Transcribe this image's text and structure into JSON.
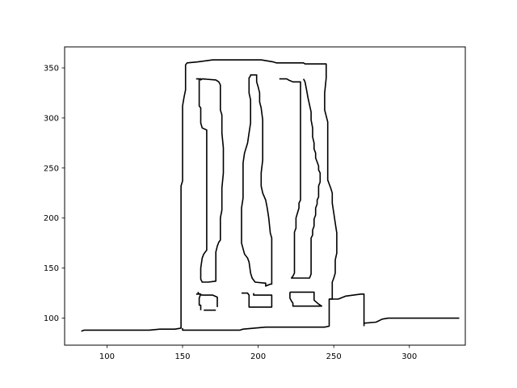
{
  "chart_data": {
    "type": "line",
    "title": "",
    "xlabel": "",
    "ylabel": "",
    "xlim": [
      72,
      337
    ],
    "ylim": [
      73,
      371
    ],
    "grid": false,
    "legend": "none",
    "line_color": "#000000",
    "x_ticks": [
      100,
      150,
      200,
      250,
      300
    ],
    "y_ticks": [
      100,
      150,
      200,
      250,
      300,
      350
    ],
    "series": [
      {
        "points": [
          [
            83,
            87
          ],
          [
            85,
            88
          ],
          [
            128,
            88
          ],
          [
            135,
            89
          ],
          [
            145,
            89
          ],
          [
            149,
            90
          ],
          [
            149,
            232
          ],
          [
            150,
            237
          ],
          [
            150,
            312
          ],
          [
            151,
            321
          ],
          [
            152,
            328
          ],
          [
            152,
            353
          ],
          [
            153,
            355
          ],
          [
            160,
            356
          ],
          [
            170,
            358
          ],
          [
            202,
            358
          ],
          [
            206,
            357
          ],
          [
            210,
            356
          ],
          [
            212,
            355
          ],
          [
            230,
            355
          ],
          [
            231,
            354
          ],
          [
            245,
            354
          ],
          [
            245,
            340
          ],
          [
            244,
            325
          ],
          [
            244,
            308
          ],
          [
            245,
            302
          ],
          [
            246,
            296
          ],
          [
            246,
            238
          ],
          [
            247,
            234
          ],
          [
            248,
            230
          ],
          [
            249,
            225
          ],
          [
            249,
            215
          ],
          [
            250,
            205
          ],
          [
            251,
            195
          ],
          [
            252,
            185
          ],
          [
            252,
            165
          ],
          [
            251,
            158
          ],
          [
            251,
            145
          ],
          [
            250,
            140
          ],
          [
            249,
            136
          ],
          [
            249,
            119
          ],
          [
            247,
            119
          ],
          [
            247,
            92
          ],
          [
            244,
            91
          ],
          [
            208,
            91
          ],
          [
            205,
            91
          ],
          [
            190,
            89
          ],
          [
            188,
            88
          ],
          [
            150,
            88
          ],
          [
            150,
            90
          ]
        ]
      },
      {
        "points": [
          [
            247,
            119
          ],
          [
            253,
            119
          ],
          [
            258,
            122
          ],
          [
            263,
            123
          ],
          [
            268,
            124
          ],
          [
            270,
            124
          ],
          [
            270,
            92
          ]
        ]
      },
      {
        "points": [
          [
            270,
            95
          ],
          [
            278,
            96
          ],
          [
            282,
            99
          ],
          [
            286,
            100
          ],
          [
            333,
            100
          ]
        ]
      },
      {
        "points": [
          [
            159,
            339
          ],
          [
            162,
            339
          ],
          [
            162,
            338
          ],
          [
            163,
            339
          ],
          [
            172,
            338
          ],
          [
            174,
            336
          ],
          [
            175,
            333
          ],
          [
            175,
            308
          ],
          [
            176,
            303
          ],
          [
            176,
            285
          ],
          [
            177,
            270
          ],
          [
            177,
            245
          ],
          [
            176,
            230
          ],
          [
            176,
            208
          ],
          [
            175,
            200
          ],
          [
            175,
            178
          ],
          [
            174,
            176
          ],
          [
            173,
            172
          ],
          [
            172,
            166
          ],
          [
            172,
            137
          ],
          [
            167,
            136
          ],
          [
            163,
            136
          ],
          [
            162,
            139
          ],
          [
            162,
            150
          ],
          [
            163,
            160
          ],
          [
            164,
            164
          ],
          [
            166,
            168
          ],
          [
            166,
            288
          ],
          [
            163,
            290
          ],
          [
            162,
            295
          ],
          [
            162,
            310
          ],
          [
            161,
            312
          ],
          [
            161,
            339
          ]
        ]
      },
      {
        "points": [
          [
            195,
            342
          ],
          [
            194,
            340
          ],
          [
            194,
            325
          ],
          [
            195,
            318
          ],
          [
            195,
            295
          ],
          [
            194,
            285
          ],
          [
            193,
            275
          ],
          [
            191,
            265
          ],
          [
            190,
            255
          ],
          [
            190,
            220
          ],
          [
            189,
            210
          ],
          [
            189,
            175
          ],
          [
            191,
            164
          ],
          [
            193,
            160
          ],
          [
            194,
            156
          ],
          [
            195,
            145
          ],
          [
            196,
            140
          ],
          [
            198,
            136
          ],
          [
            204,
            135
          ],
          [
            205,
            135
          ],
          [
            205,
            132
          ],
          [
            208,
            134
          ],
          [
            209,
            134
          ],
          [
            209,
            180
          ],
          [
            208,
            185
          ],
          [
            207,
            200
          ],
          [
            206,
            210
          ],
          [
            205,
            218
          ],
          [
            203,
            225
          ],
          [
            202,
            232
          ],
          [
            202,
            245
          ],
          [
            203,
            258
          ],
          [
            203,
            280
          ],
          [
            203,
            298
          ],
          [
            202,
            310
          ],
          [
            201,
            316
          ],
          [
            201,
            325
          ],
          [
            200,
            331
          ],
          [
            199,
            336
          ],
          [
            199,
            343
          ],
          [
            195,
            343
          ],
          [
            195,
            342
          ]
        ]
      },
      {
        "points": [
          [
            214,
            339
          ],
          [
            219,
            339
          ],
          [
            220,
            338
          ],
          [
            223,
            336
          ],
          [
            228,
            336
          ],
          [
            228,
            218
          ],
          [
            227,
            215
          ],
          [
            227,
            210
          ],
          [
            226,
            205
          ],
          [
            225,
            200
          ],
          [
            225,
            190
          ],
          [
            224,
            186
          ],
          [
            224,
            145
          ],
          [
            223,
            142
          ],
          [
            222,
            140
          ],
          [
            224,
            140
          ],
          [
            234,
            140
          ],
          [
            235,
            144
          ],
          [
            235,
            180
          ],
          [
            236,
            183
          ],
          [
            236,
            188
          ],
          [
            237,
            192
          ],
          [
            237,
            199
          ],
          [
            238,
            203
          ],
          [
            238,
            210
          ],
          [
            239,
            214
          ],
          [
            239,
            218
          ],
          [
            240,
            221
          ],
          [
            240,
            232
          ],
          [
            241,
            236
          ],
          [
            241,
            245
          ],
          [
            240,
            248
          ],
          [
            240,
            252
          ],
          [
            239,
            256
          ],
          [
            238,
            260
          ],
          [
            238,
            265
          ],
          [
            237,
            269
          ],
          [
            237,
            275
          ],
          [
            236,
            281
          ],
          [
            236,
            290
          ],
          [
            235,
            298
          ],
          [
            235,
            306
          ],
          [
            234,
            313
          ],
          [
            233,
            320
          ],
          [
            232,
            328
          ],
          [
            231,
            336
          ],
          [
            230,
            339
          ]
        ]
      },
      {
        "points": [
          [
            159,
            124
          ],
          [
            162,
            124
          ],
          [
            161,
            120
          ],
          [
            161,
            113
          ],
          [
            162,
            113
          ],
          [
            162,
            108
          ]
        ]
      },
      {
        "points": [
          [
            164,
            108
          ],
          [
            172,
            108
          ]
        ]
      },
      {
        "points": [
          [
            160,
            126
          ],
          [
            161,
            124
          ],
          [
            163,
            123
          ],
          [
            170,
            123
          ],
          [
            173,
            121
          ],
          [
            173,
            111
          ]
        ]
      },
      {
        "points": [
          [
            189,
            125
          ],
          [
            193,
            125
          ],
          [
            194,
            123
          ],
          [
            194,
            111
          ],
          [
            209,
            111
          ],
          [
            209,
            123
          ],
          [
            197,
            123
          ],
          [
            197,
            125
          ]
        ]
      },
      {
        "points": [
          [
            221,
            126
          ],
          [
            237,
            126
          ],
          [
            237,
            118
          ],
          [
            240,
            114
          ],
          [
            242,
            112
          ],
          [
            223,
            112
          ],
          [
            223,
            115
          ],
          [
            222,
            117
          ],
          [
            221,
            120
          ],
          [
            221,
            126
          ]
        ]
      }
    ]
  }
}
